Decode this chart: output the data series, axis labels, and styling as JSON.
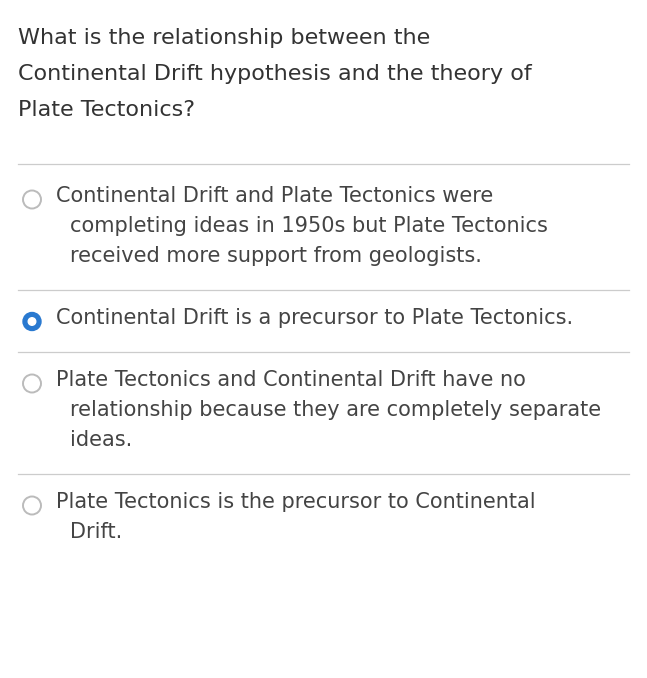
{
  "background_color": "#ffffff",
  "question_lines": [
    "What is the relationship between the",
    "Continental Drift hypothesis and the theory of",
    "Plate Tectonics?"
  ],
  "options": [
    {
      "selected": false,
      "lines": [
        "Continental Drift and Plate Tectonics were",
        "completing ideas in 1950s but Plate Tectonics",
        "received more support from geologists."
      ]
    },
    {
      "selected": true,
      "lines": [
        "Continental Drift is a precursor to Plate Tectonics."
      ]
    },
    {
      "selected": false,
      "lines": [
        "Plate Tectonics and Continental Drift have no",
        "relationship because they are completely separate",
        "ideas."
      ]
    },
    {
      "selected": false,
      "lines": [
        "Plate Tectonics is the precursor to Continental",
        "Drift."
      ]
    }
  ],
  "question_font_size": 16,
  "option_font_size": 15,
  "question_color": "#333333",
  "option_color": "#444444",
  "selected_fill_color": "#2979d0",
  "selected_edge_color": "#2979d0",
  "unselected_edge_color": "#bbbbbb",
  "divider_color": "#cccccc",
  "fig_width": 6.47,
  "fig_height": 6.78,
  "dpi": 100
}
